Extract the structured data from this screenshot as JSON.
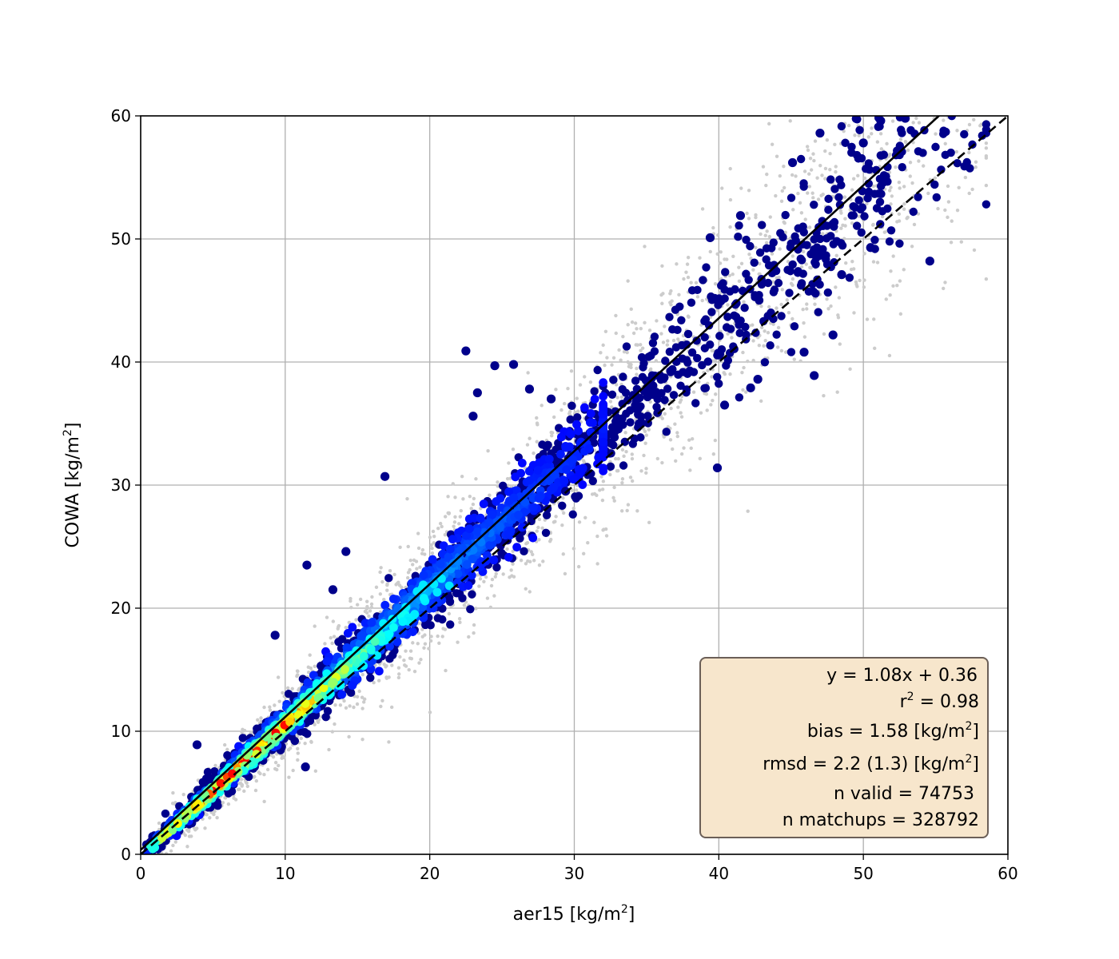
{
  "colors": {
    "grid": "#b0b0b0",
    "background_points": "#cccccc",
    "density_low": "#00008b",
    "density_high": "#ff0000",
    "fit_line": "#000000",
    "identity_line": "#000000",
    "stats_box_fill": "#f7e6cc",
    "stats_box_border": "#6b5f57"
  },
  "chart_data": {
    "type": "scatter",
    "title": "",
    "xlabel": "aer15",
    "xlabel_unit": "[kg/m",
    "xlabel_unit_sup": "2",
    "xlabel_unit_end": "]",
    "ylabel": "COWA",
    "ylabel_unit": "[kg/m",
    "ylabel_unit_sup": "2",
    "ylabel_unit_end": "]",
    "xlim": [
      0,
      60
    ],
    "ylim": [
      0,
      60
    ],
    "xticks": [
      0,
      10,
      20,
      30,
      40,
      50,
      60
    ],
    "yticks": [
      0,
      10,
      20,
      30,
      40,
      50,
      60
    ],
    "grid": true,
    "fit": {
      "slope": 1.08,
      "intercept": 0.36
    },
    "identity_line": {
      "slope": 1.0,
      "intercept": 0.0
    },
    "stats": {
      "equation": "y = 1.08x + 0.36",
      "r2_prefix": "r",
      "r2_sup": "2",
      "r2_value": " = 0.98",
      "bias_prefix": "bias = 1.58 [kg/m",
      "bias_sup": "2",
      "bias_suffix": "]",
      "rmsd_prefix": "rmsd = 2.2 (1.3) [kg/m",
      "rmsd_sup": "2",
      "rmsd_suffix": "]",
      "n_valid": "n valid = 74753",
      "n_matchups": "n matchups = 328792"
    },
    "notable_points": [
      {
        "x": 22.5,
        "y": 40.9
      },
      {
        "x": 24.5,
        "y": 39.7
      },
      {
        "x": 23.3,
        "y": 37.5
      },
      {
        "x": 23.0,
        "y": 35.6
      },
      {
        "x": 26.9,
        "y": 37.8
      },
      {
        "x": 28.4,
        "y": 37.0
      },
      {
        "x": 25.8,
        "y": 39.8
      },
      {
        "x": 16.9,
        "y": 30.7
      },
      {
        "x": 14.2,
        "y": 24.6
      },
      {
        "x": 11.5,
        "y": 23.5
      },
      {
        "x": 13.3,
        "y": 21.5
      },
      {
        "x": 9.3,
        "y": 17.8
      },
      {
        "x": 3.9,
        "y": 8.9
      },
      {
        "x": 11.4,
        "y": 7.1
      },
      {
        "x": 39.9,
        "y": 31.4
      },
      {
        "x": 40.4,
        "y": 36.5
      },
      {
        "x": 42.7,
        "y": 38.6
      },
      {
        "x": 42.2,
        "y": 37.9
      },
      {
        "x": 46.6,
        "y": 38.9
      },
      {
        "x": 47.9,
        "y": 42.2
      },
      {
        "x": 45.9,
        "y": 40.8
      },
      {
        "x": 48.5,
        "y": 47.1
      },
      {
        "x": 54.6,
        "y": 48.2
      },
      {
        "x": 50.5,
        "y": 49.3
      },
      {
        "x": 45.1,
        "y": 56.2
      },
      {
        "x": 47.0,
        "y": 58.6
      },
      {
        "x": 50.0,
        "y": 57.8
      },
      {
        "x": 51.2,
        "y": 59.6
      },
      {
        "x": 52.9,
        "y": 59.8
      },
      {
        "x": 39.4,
        "y": 50.1
      },
      {
        "x": 41.5,
        "y": 51.9
      },
      {
        "x": 29.4,
        "y": 29.5
      }
    ]
  }
}
